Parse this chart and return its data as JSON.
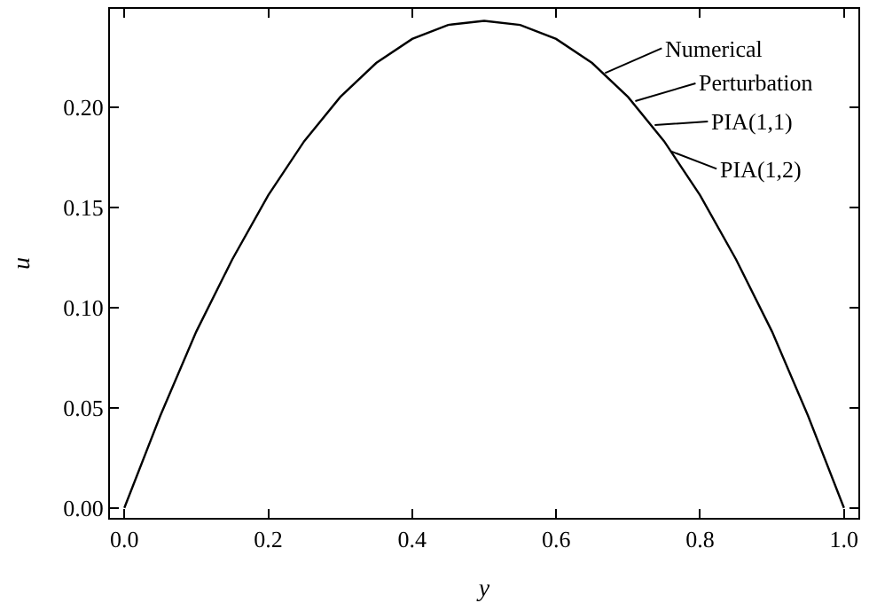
{
  "chart_data": {
    "type": "line",
    "xlabel": "y",
    "ylabel": "u",
    "x": [
      0,
      0.05,
      0.1,
      0.15,
      0.2,
      0.25,
      0.3,
      0.35,
      0.4,
      0.45,
      0.5,
      0.55,
      0.6,
      0.65,
      0.7,
      0.75,
      0.8,
      0.85,
      0.9,
      0.95,
      1
    ],
    "series": [
      {
        "color": "#000000",
        "values": [
          0,
          0.046,
          0.088,
          0.124,
          0.156,
          0.183,
          0.205,
          0.222,
          0.234,
          0.241,
          0.243,
          0.241,
          0.234,
          0.222,
          0.205,
          0.183,
          0.156,
          0.124,
          0.088,
          0.046,
          0
        ]
      }
    ],
    "xlim": [
      -0.02,
      1.02
    ],
    "ylim": [
      -0.005,
      0.249
    ],
    "xticks": [
      {
        "value": 0,
        "label": "0.0"
      },
      {
        "value": 0.2,
        "label": "0.2"
      },
      {
        "value": 0.4,
        "label": "0.4"
      },
      {
        "value": 0.6,
        "label": "0.6"
      },
      {
        "value": 0.8,
        "label": "0.8"
      },
      {
        "value": 1,
        "label": "1.0"
      }
    ],
    "yticks": [
      {
        "value": 0,
        "label": "0.00"
      },
      {
        "value": 0.05,
        "label": "0.05"
      },
      {
        "value": 0.1,
        "label": "0.10"
      },
      {
        "value": 0.15,
        "label": "0.15"
      },
      {
        "value": 0.2,
        "label": "0.20"
      }
    ],
    "annotations": [
      {
        "text": "Numerical",
        "x": 0.668,
        "y": 0.217
      },
      {
        "text": "Perturbation",
        "x": 0.71,
        "y": 0.203
      },
      {
        "text": "PIA(1,1)",
        "x": 0.737,
        "y": 0.191
      },
      {
        "text": "PIA(1,2)",
        "x": 0.759,
        "y": 0.178
      }
    ],
    "marker": "none",
    "line_style": "solid"
  }
}
